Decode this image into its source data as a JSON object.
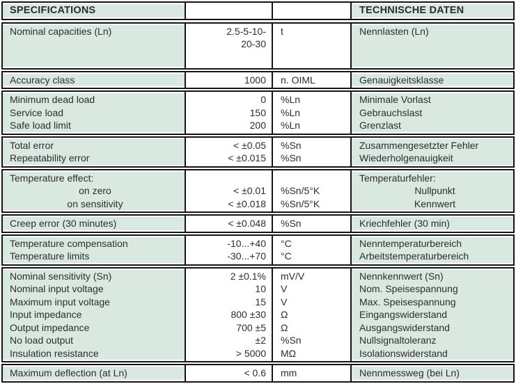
{
  "table": {
    "accent_green": "#dae8e2",
    "border_color": "#141414",
    "text_color": "#2d2d2d",
    "groups": [
      {
        "header": true,
        "rows": [
          {
            "label": "SPECIFICATIONS",
            "value": "",
            "unit": "",
            "german": "TECHNISCHE DATEN"
          }
        ]
      },
      {
        "rows": [
          {
            "label": "Nominal capacities (Ln)",
            "value": "2.5-5-10-",
            "unit": "t",
            "german": "Nennlasten (Ln)"
          },
          {
            "label": "",
            "value": "20-30",
            "unit": "",
            "german": ""
          }
        ]
      },
      {
        "rows": [
          {
            "label": "Accuracy class",
            "value": "1000",
            "unit": "n. OIML",
            "german": "Genauigkeitsklasse"
          }
        ]
      },
      {
        "rows": [
          {
            "label": "Minimum dead load",
            "value": "0",
            "unit": "%Ln",
            "german": "Minimale Vorlast"
          },
          {
            "label": "Service load",
            "value": "150",
            "unit": "%Ln",
            "german": "Gebrauchslast"
          },
          {
            "label": "Safe load limit",
            "value": "200",
            "unit": "%Ln",
            "german": "Grenzlast"
          }
        ]
      },
      {
        "rows": [
          {
            "label": "Total error",
            "value": "< ±0.05",
            "unit": "%Sn",
            "german": "Zusammengesetzter Fehler"
          },
          {
            "label": "Repeatability error",
            "value": "< ±0.015",
            "unit": "%Sn",
            "german": "Wiederholgenauigkeit"
          }
        ]
      },
      {
        "rows": [
          {
            "label": "Temperature effect:",
            "value": "",
            "unit": "",
            "german": "Temperaturfehler:"
          },
          {
            "label": "on zero",
            "value": "< ±0.01",
            "unit": "%Sn/5°K",
            "german": "Nullpunkt"
          },
          {
            "label": "on sensitivity",
            "value": "< ±0.018",
            "unit": "%Sn/5°K",
            "german": "Kennwert"
          }
        ]
      },
      {
        "rows": [
          {
            "label": "Creep error (30 minutes)",
            "value": "< ±0.048",
            "unit": "%Sn",
            "german": "Kriechfehler (30 min)"
          }
        ]
      },
      {
        "rows": [
          {
            "label": "Temperature compensation",
            "value": "-10...+40",
            "unit": "°C",
            "german": "Nenntemperaturbereich"
          },
          {
            "label": "Temperature limits",
            "value": "-30...+70",
            "unit": "°C",
            "german": "Arbeitstemperaturbereich"
          }
        ]
      },
      {
        "rows": [
          {
            "label": "Nominal sensitivity (Sn)",
            "value": "2 ±0.1%",
            "unit": "mV/V",
            "german": "Nennkennwert (Sn)"
          },
          {
            "label": "Nominal input voltage",
            "value": "10",
            "unit": "V",
            "german": "Nom. Speisespannung"
          },
          {
            "label": "Maximum input voltage",
            "value": "15",
            "unit": "V",
            "german": "Max. Speisespannung"
          },
          {
            "label": "Input impedance",
            "value": "800 ±30",
            "unit": "Ω",
            "german": "Eingangswiderstand"
          },
          {
            "label": "Output impedance",
            "value": "700 ±5",
            "unit": "Ω",
            "german": "Ausgangswiderstand"
          },
          {
            "label": "No load output",
            "value": "±2",
            "unit": "%Sn",
            "german": "Nullsignaltoleranz"
          },
          {
            "label": "Insulation resistance",
            "value": "> 5000",
            "unit": "MΩ",
            "german": "Isolationswiderstand"
          }
        ]
      },
      {
        "rows": [
          {
            "label": "Maximum deflection (at Ln)",
            "value": "< 0.6",
            "unit": "mm",
            "german": "Nennmessweg (bei Ln)"
          }
        ]
      }
    ]
  }
}
